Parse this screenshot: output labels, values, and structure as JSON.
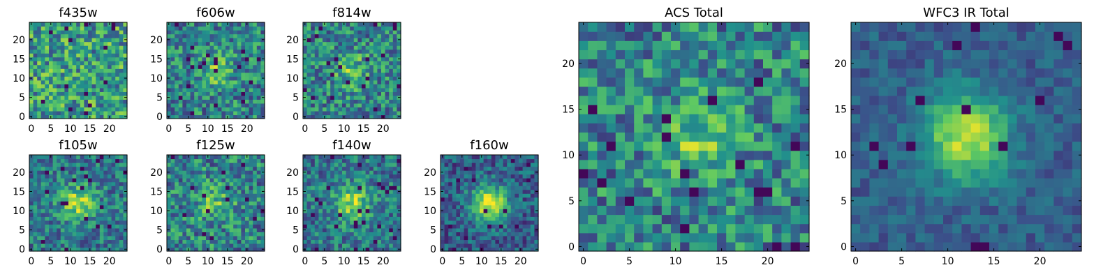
{
  "chart_data": [
    {
      "type": "heatmap",
      "title": "f435w",
      "seed": 11,
      "profile": "noise",
      "xticks": [
        "0",
        "5",
        "10",
        "15",
        "20"
      ],
      "yticks": [
        "0",
        "5",
        "10",
        "15",
        "20"
      ],
      "xlim": [
        0,
        25
      ],
      "ylim": [
        0,
        25
      ]
    },
    {
      "type": "heatmap",
      "title": "f606w",
      "seed": 23,
      "profile": "faint",
      "xticks": [
        "0",
        "5",
        "10",
        "15",
        "20"
      ],
      "yticks": [
        "0",
        "5",
        "10",
        "15",
        "20"
      ],
      "xlim": [
        0,
        25
      ],
      "ylim": [
        0,
        25
      ]
    },
    {
      "type": "heatmap",
      "title": "f814w",
      "seed": 37,
      "profile": "faint",
      "xticks": [
        "0",
        "5",
        "10",
        "15",
        "20"
      ],
      "yticks": [
        "0",
        "5",
        "10",
        "15",
        "20"
      ],
      "xlim": [
        0,
        25
      ],
      "ylim": [
        0,
        25
      ]
    },
    {
      "type": "heatmap",
      "title": "f105w",
      "seed": 41,
      "profile": "source",
      "xticks": [
        "0",
        "5",
        "10",
        "15",
        "20"
      ],
      "yticks": [
        "0",
        "5",
        "10",
        "15",
        "20"
      ],
      "xlim": [
        0,
        25
      ],
      "ylim": [
        0,
        25
      ]
    },
    {
      "type": "heatmap",
      "title": "f125w",
      "seed": 53,
      "profile": "faint",
      "xticks": [
        "0",
        "5",
        "10",
        "15",
        "20"
      ],
      "yticks": [
        "0",
        "5",
        "10",
        "15",
        "20"
      ],
      "xlim": [
        0,
        25
      ],
      "ylim": [
        0,
        25
      ]
    },
    {
      "type": "heatmap",
      "title": "f140w",
      "seed": 67,
      "profile": "source",
      "xticks": [
        "0",
        "5",
        "10",
        "15",
        "20"
      ],
      "yticks": [
        "0",
        "5",
        "10",
        "15",
        "20"
      ],
      "xlim": [
        0,
        25
      ],
      "ylim": [
        0,
        25
      ]
    },
    {
      "type": "heatmap",
      "title": "f160w",
      "seed": 79,
      "profile": "strong",
      "xticks": [
        "0",
        "5",
        "10",
        "15",
        "20"
      ],
      "yticks": [
        "0",
        "5",
        "10",
        "15",
        "20"
      ],
      "xlim": [
        0,
        25
      ],
      "ylim": [
        0,
        25
      ]
    },
    {
      "type": "heatmap",
      "title": "ACS Total",
      "seed": 83,
      "profile": "faint",
      "xticks": [
        "0",
        "5",
        "10",
        "15",
        "20"
      ],
      "yticks": [
        "0",
        "5",
        "10",
        "15",
        "20"
      ],
      "xlim": [
        0,
        25
      ],
      "ylim": [
        0,
        25
      ]
    },
    {
      "type": "heatmap",
      "title": "WFC3 IR Total",
      "seed": 97,
      "profile": "smooth",
      "xticks": [
        "0",
        "5",
        "10",
        "15",
        "20"
      ],
      "yticks": [
        "0",
        "5",
        "10",
        "15",
        "20"
      ],
      "xlim": [
        0,
        25
      ],
      "ylim": [
        0,
        25
      ]
    }
  ],
  "colormap": [
    "#440154",
    "#3b528b",
    "#21918c",
    "#5ec962",
    "#fde725"
  ]
}
